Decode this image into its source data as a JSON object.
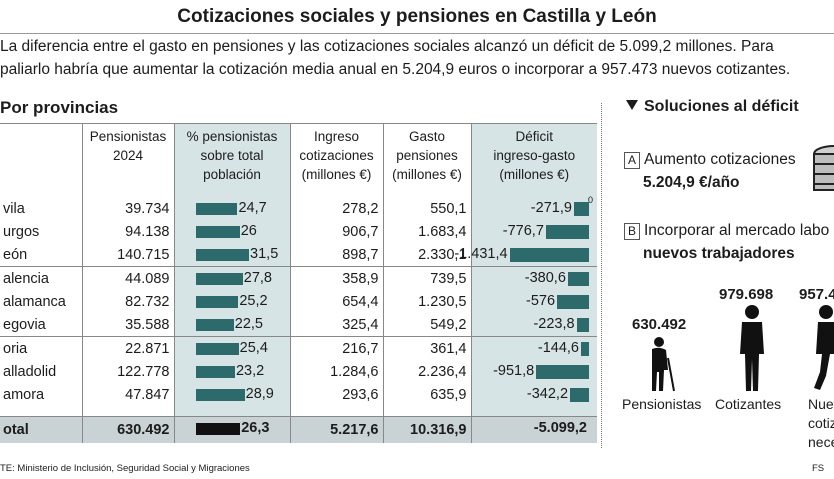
{
  "title": "Cotizaciones sociales y pensiones en Castilla y León",
  "intro": {
    "line1": "La diferencia entre el gasto en pensiones y las cotizaciones sociales alcanzó un déficit de 5.099,2 millones. Para",
    "line2": "paliarlo habría que aumentar la cotización media anual en 5.204,9 euros o incorporar a 957.473 nuevos cotizantes."
  },
  "section_title": "Por provincias",
  "chart_data": {
    "type": "table",
    "columns": [
      "Pensionistas 2024",
      "% pensionistas sobre total población",
      "Ingreso cotizaciones (millones €)",
      "Gasto pensiones (millones €)",
      "Déficit ingreso-gasto (millones €)"
    ],
    "column_lines": [
      [
        "Pensionistas",
        "2024"
      ],
      [
        "% pensionistas",
        "sobre total",
        "población"
      ],
      [
        "Ingreso",
        "cotizaciones",
        "(millones €)"
      ],
      [
        "Gasto",
        "pensiones",
        "(millones €)"
      ],
      [
        "Déficit",
        "ingreso-gasto",
        "(millones €)"
      ]
    ],
    "rows": [
      {
        "province": "Ávila",
        "shown": "vila",
        "pensionistas": "39.734",
        "pct": 24.7,
        "pct_label": "24,7",
        "ingreso": "278,2",
        "gasto": "550,1",
        "deficit": -271.9,
        "deficit_label": "-271,9"
      },
      {
        "province": "Burgos",
        "shown": "urgos",
        "pensionistas": "94.138",
        "pct": 26,
        "pct_label": "26",
        "ingreso": "906,7",
        "gasto": "1.683,4",
        "deficit": -776.7,
        "deficit_label": "-776,7"
      },
      {
        "province": "León",
        "shown": "eón",
        "pensionistas": "140.715",
        "pct": 31.5,
        "pct_label": "31,5",
        "ingreso": "898,7",
        "gasto": "2.330,1",
        "deficit": -1431.4,
        "deficit_label": "-1.431,4"
      },
      {
        "province": "Palencia",
        "shown": "alencia",
        "pensionistas": "44.089",
        "pct": 27.8,
        "pct_label": "27,8",
        "ingreso": "358,9",
        "gasto": "739,5",
        "deficit": -380.6,
        "deficit_label": "-380,6"
      },
      {
        "province": "Salamanca",
        "shown": "alamanca",
        "pensionistas": "82.732",
        "pct": 25.2,
        "pct_label": "25,2",
        "ingreso": "654,4",
        "gasto": "1.230,5",
        "deficit": -576,
        "deficit_label": "-576"
      },
      {
        "province": "Segovia",
        "shown": "egovia",
        "pensionistas": "35.588",
        "pct": 22.5,
        "pct_label": "22,5",
        "ingreso": "325,4",
        "gasto": "549,2",
        "deficit": -223.8,
        "deficit_label": "-223,8"
      },
      {
        "province": "Soria",
        "shown": "oria",
        "pensionistas": "22.871",
        "pct": 25.4,
        "pct_label": "25,4",
        "ingreso": "216,7",
        "gasto": "361,4",
        "deficit": -144.6,
        "deficit_label": "-144,6"
      },
      {
        "province": "Valladolid",
        "shown": "alladolid",
        "pensionistas": "122.778",
        "pct": 23.2,
        "pct_label": "23,2",
        "ingreso": "1.284,6",
        "gasto": "2.236,4",
        "deficit": -951.8,
        "deficit_label": "-951,8"
      },
      {
        "province": "Zamora",
        "shown": "amora",
        "pensionistas": "47.847",
        "pct": 28.9,
        "pct_label": "28,9",
        "ingreso": "293,6",
        "gasto": "635,9",
        "deficit": -342.2,
        "deficit_label": "-342,2"
      }
    ],
    "total": {
      "label": "otal",
      "pensionistas": "630.492",
      "pct": 26.3,
      "pct_label": "26,3",
      "ingreso": "5.217,6",
      "gasto": "10.316,9",
      "deficit": -5099.2,
      "deficit_label": "-5.099,2"
    },
    "deficit_zero_label": "0",
    "bar_color": "#2d6a6b",
    "total_bar_color": "#111111"
  },
  "source": "TE: Ministerio de Inclusión, Seguridad Social y Migraciones",
  "credit": "FS",
  "solutions": {
    "title": "Soluciones al déficit",
    "a_badge": "A",
    "a_text": "Aumento cotizaciones",
    "a_value": "5.204,9 €/año",
    "b_badge": "B",
    "b_text": "Incorporar al mercado labo",
    "b_value": "nuevos trabajadores",
    "figures": [
      {
        "value": "630.492",
        "label": "Pensionistas"
      },
      {
        "value": "979.698",
        "label": "Cotizantes"
      },
      {
        "value": "957.4",
        "label_lines": [
          "Nuev",
          "cotiza",
          "necesa"
        ]
      }
    ]
  },
  "colors": {
    "shade": "#d7e4e6",
    "total_row": "#c9d2d5",
    "bar": "#2d6a6b"
  }
}
